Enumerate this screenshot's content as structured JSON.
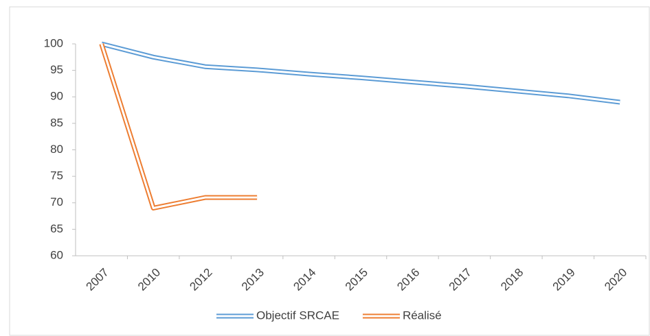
{
  "chart_data": {
    "type": "line",
    "categories": [
      "2007",
      "2010",
      "2012",
      "2013",
      "2014",
      "2015",
      "2016",
      "2017",
      "2018",
      "2019",
      "2020"
    ],
    "series": [
      {
        "name": "Objectif SRCAE",
        "color": "#5b9bd5",
        "values": [
          100,
          97.5,
          95.7,
          95.1,
          94.3,
          93.6,
          92.8,
          92.0,
          91.1,
          90.2,
          89.0
        ]
      },
      {
        "name": "Réalisé",
        "color": "#ed7d31",
        "values": [
          100,
          69,
          71,
          71,
          null,
          null,
          null,
          null,
          null,
          null,
          null
        ]
      }
    ],
    "ylim": [
      60,
      100
    ],
    "yticks": [
      60,
      65,
      70,
      75,
      80,
      85,
      90,
      95,
      100
    ],
    "grid": false,
    "legend": "bottom"
  }
}
